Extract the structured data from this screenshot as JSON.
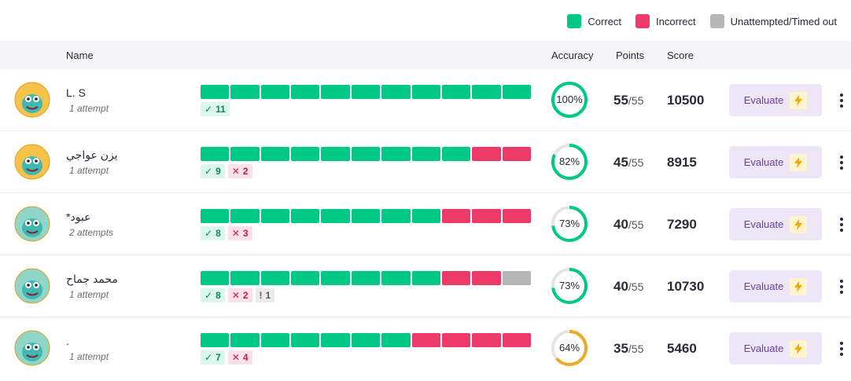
{
  "colors": {
    "correct": "#00c985",
    "incorrect": "#ec3b68",
    "unattempted": "#b6b6b6",
    "ring_track": "#e5e5e5",
    "ring_warn": "#efa929"
  },
  "legend": {
    "correct": "Correct",
    "incorrect": "Incorrect",
    "unattempted": "Unattempted/Timed out"
  },
  "columns": {
    "name": "Name",
    "accuracy": "Accuracy",
    "points": "Points",
    "score": "Score"
  },
  "evaluate_label": "Evaluate",
  "rows": [
    {
      "name": "L. S",
      "attempts": "1 attempt",
      "results": [
        "c",
        "c",
        "c",
        "c",
        "c",
        "c",
        "c",
        "c",
        "c",
        "c",
        "c"
      ],
      "correct_count": "11",
      "incorrect_count": "",
      "unattempted_count": "",
      "accuracy": 1.0,
      "accuracy_label": "100%",
      "points": "55",
      "points_max": "/55",
      "score": "10500",
      "avatar_icon": "teal-monster-avatar-icon",
      "avatar_bg": "#f6c24a",
      "ring_color": "#00c985"
    },
    {
      "name": "يزن عواجي",
      "attempts": "1 attempt",
      "results": [
        "c",
        "c",
        "c",
        "c",
        "c",
        "c",
        "c",
        "c",
        "c",
        "i",
        "i"
      ],
      "correct_count": "9",
      "incorrect_count": "2",
      "unattempted_count": "",
      "accuracy": 0.82,
      "accuracy_label": "82%",
      "points": "45",
      "points_max": "/55",
      "score": "8915",
      "avatar_icon": "sunglasses-monster-avatar-icon",
      "avatar_bg": "#f6c24a",
      "ring_color": "#00c985"
    },
    {
      "name": "*عبود",
      "attempts": "2 attempts",
      "results": [
        "c",
        "c",
        "c",
        "c",
        "c",
        "c",
        "c",
        "c",
        "i",
        "i",
        "i"
      ],
      "correct_count": "8",
      "incorrect_count": "3",
      "unattempted_count": "",
      "accuracy": 0.73,
      "accuracy_label": "73%",
      "points": "40",
      "points_max": "/55",
      "score": "7290",
      "avatar_icon": "wizard-cupcake-avatar-icon",
      "avatar_bg": "#8fd6c8",
      "ring_color": "#00c985"
    },
    {
      "name": "محمد جماح",
      "attempts": "1 attempt",
      "results": [
        "c",
        "c",
        "c",
        "c",
        "c",
        "c",
        "c",
        "c",
        "i",
        "i",
        "u"
      ],
      "correct_count": "8",
      "incorrect_count": "2",
      "unattempted_count": "1",
      "accuracy": 0.73,
      "accuracy_label": "73%",
      "points": "40",
      "points_max": "/55",
      "score": "10730",
      "avatar_icon": "orange-creature-avatar-icon",
      "avatar_bg": "#8fd6c8",
      "ring_color": "#00c985"
    },
    {
      "name": ".",
      "attempts": "1 attempt",
      "results": [
        "c",
        "c",
        "c",
        "c",
        "c",
        "c",
        "c",
        "i",
        "i",
        "i",
        "i"
      ],
      "correct_count": "7",
      "incorrect_count": "4",
      "unattempted_count": "",
      "accuracy": 0.64,
      "accuracy_label": "64%",
      "points": "35",
      "points_max": "/55",
      "score": "5460",
      "avatar_icon": "lightbulb-avatar-icon",
      "avatar_bg": "#8fd6c8",
      "ring_color": "#efa929"
    }
  ]
}
